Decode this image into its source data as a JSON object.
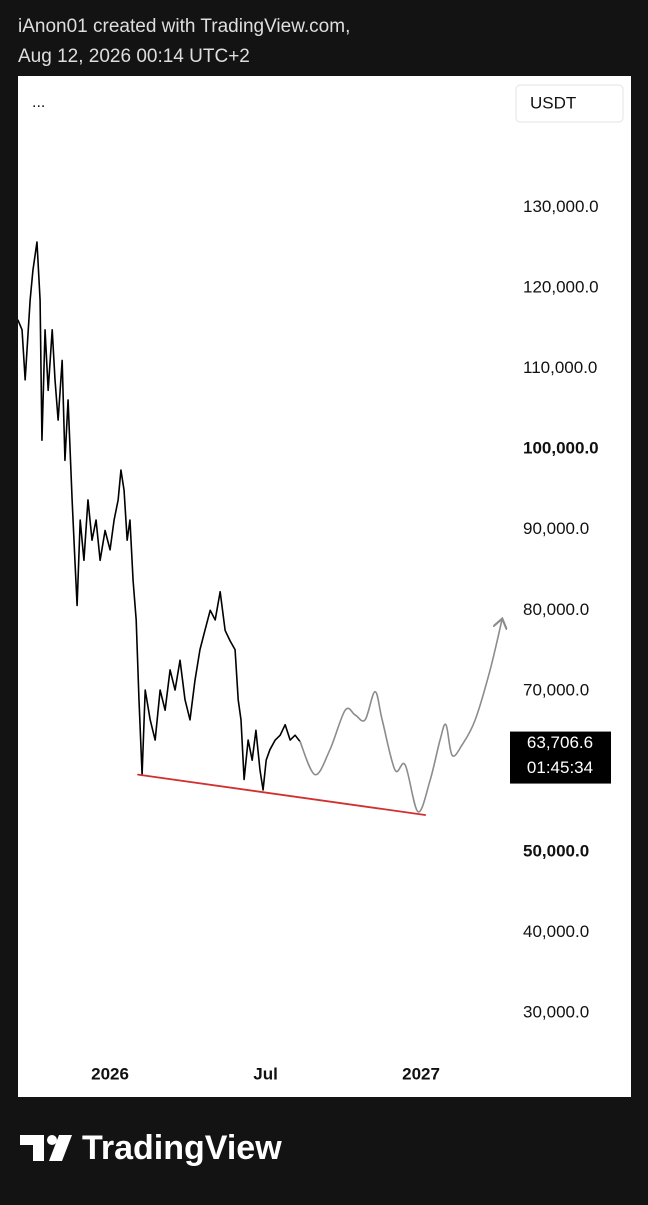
{
  "chart_data": {
    "type": "line",
    "title": "iAnon01 created with TradingView.com,",
    "subtitle": "Aug 12, 2026 00:14 UTC+2",
    "menu": "...",
    "currency": "USDT",
    "brand": "TradingView",
    "xlim": [
      2025.704,
      2027.675
    ],
    "xticks": [
      {
        "value": 2026,
        "label": "2026"
      },
      {
        "value": 2026.5,
        "label": "Jul"
      },
      {
        "value": 2027,
        "label": "2027"
      }
    ],
    "ylim": [
      19600,
      146300
    ],
    "yticks": [
      {
        "value": 130000,
        "label": "130,000.0"
      },
      {
        "value": 120000,
        "label": "120,000.0"
      },
      {
        "value": 110000,
        "label": "110,000.0"
      },
      {
        "value": 100000,
        "label": "100,000.0",
        "emphasized": true
      },
      {
        "value": 90000,
        "label": "90,000.0"
      },
      {
        "value": 80000,
        "label": "80,000.0"
      },
      {
        "value": 70000,
        "label": "70,000.0"
      },
      {
        "value": 50000,
        "label": "50,000.0",
        "emphasized": true
      },
      {
        "value": 40000,
        "label": "40,000.0"
      },
      {
        "value": 30000,
        "label": "30,000.0"
      }
    ],
    "grid": false,
    "last_price": {
      "value": 63706.6,
      "label": "63,706.6"
    },
    "countdown": "01:45:34",
    "series": [
      {
        "color": "#000000",
        "width": 1.6,
        "smooth": false,
        "arrow": false,
        "x": [
          2025.704,
          2025.717,
          2025.727,
          2025.743,
          2025.752,
          2025.765,
          2025.775,
          2025.781,
          2025.791,
          2025.801,
          2025.814,
          2025.823,
          2025.833,
          2025.846,
          2025.855,
          2025.865,
          2025.878,
          2025.887,
          2025.894,
          2025.904,
          2025.916,
          2025.929,
          2025.942,
          2025.955,
          2025.968,
          2025.984,
          2026.0,
          2026.013,
          2026.026,
          2026.035,
          2026.045,
          2026.055,
          2026.064,
          2026.074,
          2026.084,
          2026.093,
          2026.103,
          2026.113,
          2026.129,
          2026.145,
          2026.161,
          2026.177,
          2026.193,
          2026.209,
          2026.225,
          2026.241,
          2026.257,
          2026.273,
          2026.289,
          2026.305,
          2026.322,
          2026.338,
          2026.354,
          2026.37,
          2026.386,
          2026.402,
          2026.412,
          2026.421,
          2026.431,
          2026.444,
          2026.457,
          2026.469,
          2026.482,
          2026.492,
          2026.502,
          2026.514,
          2026.531,
          2026.547,
          2026.563,
          2026.579,
          2026.595,
          2026.611
        ],
        "values": [
          116000,
          114800,
          108600,
          118500,
          122200,
          125700,
          118500,
          101100,
          114800,
          107300,
          114800,
          108600,
          103600,
          111000,
          98600,
          106100,
          93700,
          86200,
          80600,
          91200,
          86200,
          93700,
          88700,
          91200,
          86200,
          89900,
          87500,
          91200,
          93700,
          97400,
          94900,
          88700,
          91200,
          83700,
          78800,
          68900,
          59600,
          70100,
          66400,
          63900,
          70100,
          67600,
          72600,
          70100,
          73800,
          68900,
          66400,
          71300,
          75100,
          77500,
          80000,
          78800,
          82300,
          77500,
          76200,
          75100,
          68900,
          66400,
          59000,
          63900,
          61400,
          65100,
          60200,
          57700,
          61400,
          62700,
          63900,
          64500,
          65800,
          63900,
          64500,
          63700
        ]
      },
      {
        "color": "#8c8c8c",
        "width": 1.6,
        "smooth": true,
        "arrow": true,
        "x": [
          2026.611,
          2026.659,
          2026.707,
          2026.756,
          2026.788,
          2026.82,
          2026.852,
          2026.875,
          2026.916,
          2026.949,
          2026.99,
          2027.029,
          2027.061,
          2027.08,
          2027.1,
          2027.132,
          2027.174,
          2027.222,
          2027.26
        ],
        "values": [
          63700,
          59600,
          62700,
          67600,
          67000,
          66400,
          69900,
          66400,
          60200,
          60800,
          55000,
          58900,
          63900,
          65800,
          62000,
          63300,
          66400,
          72600,
          78800
        ]
      },
      {
        "color": "#d32f2f",
        "width": 1.8,
        "smooth": false,
        "arrow": false,
        "x": [
          2026.09,
          2027.013
        ],
        "values": [
          59600,
          54600
        ]
      }
    ]
  }
}
